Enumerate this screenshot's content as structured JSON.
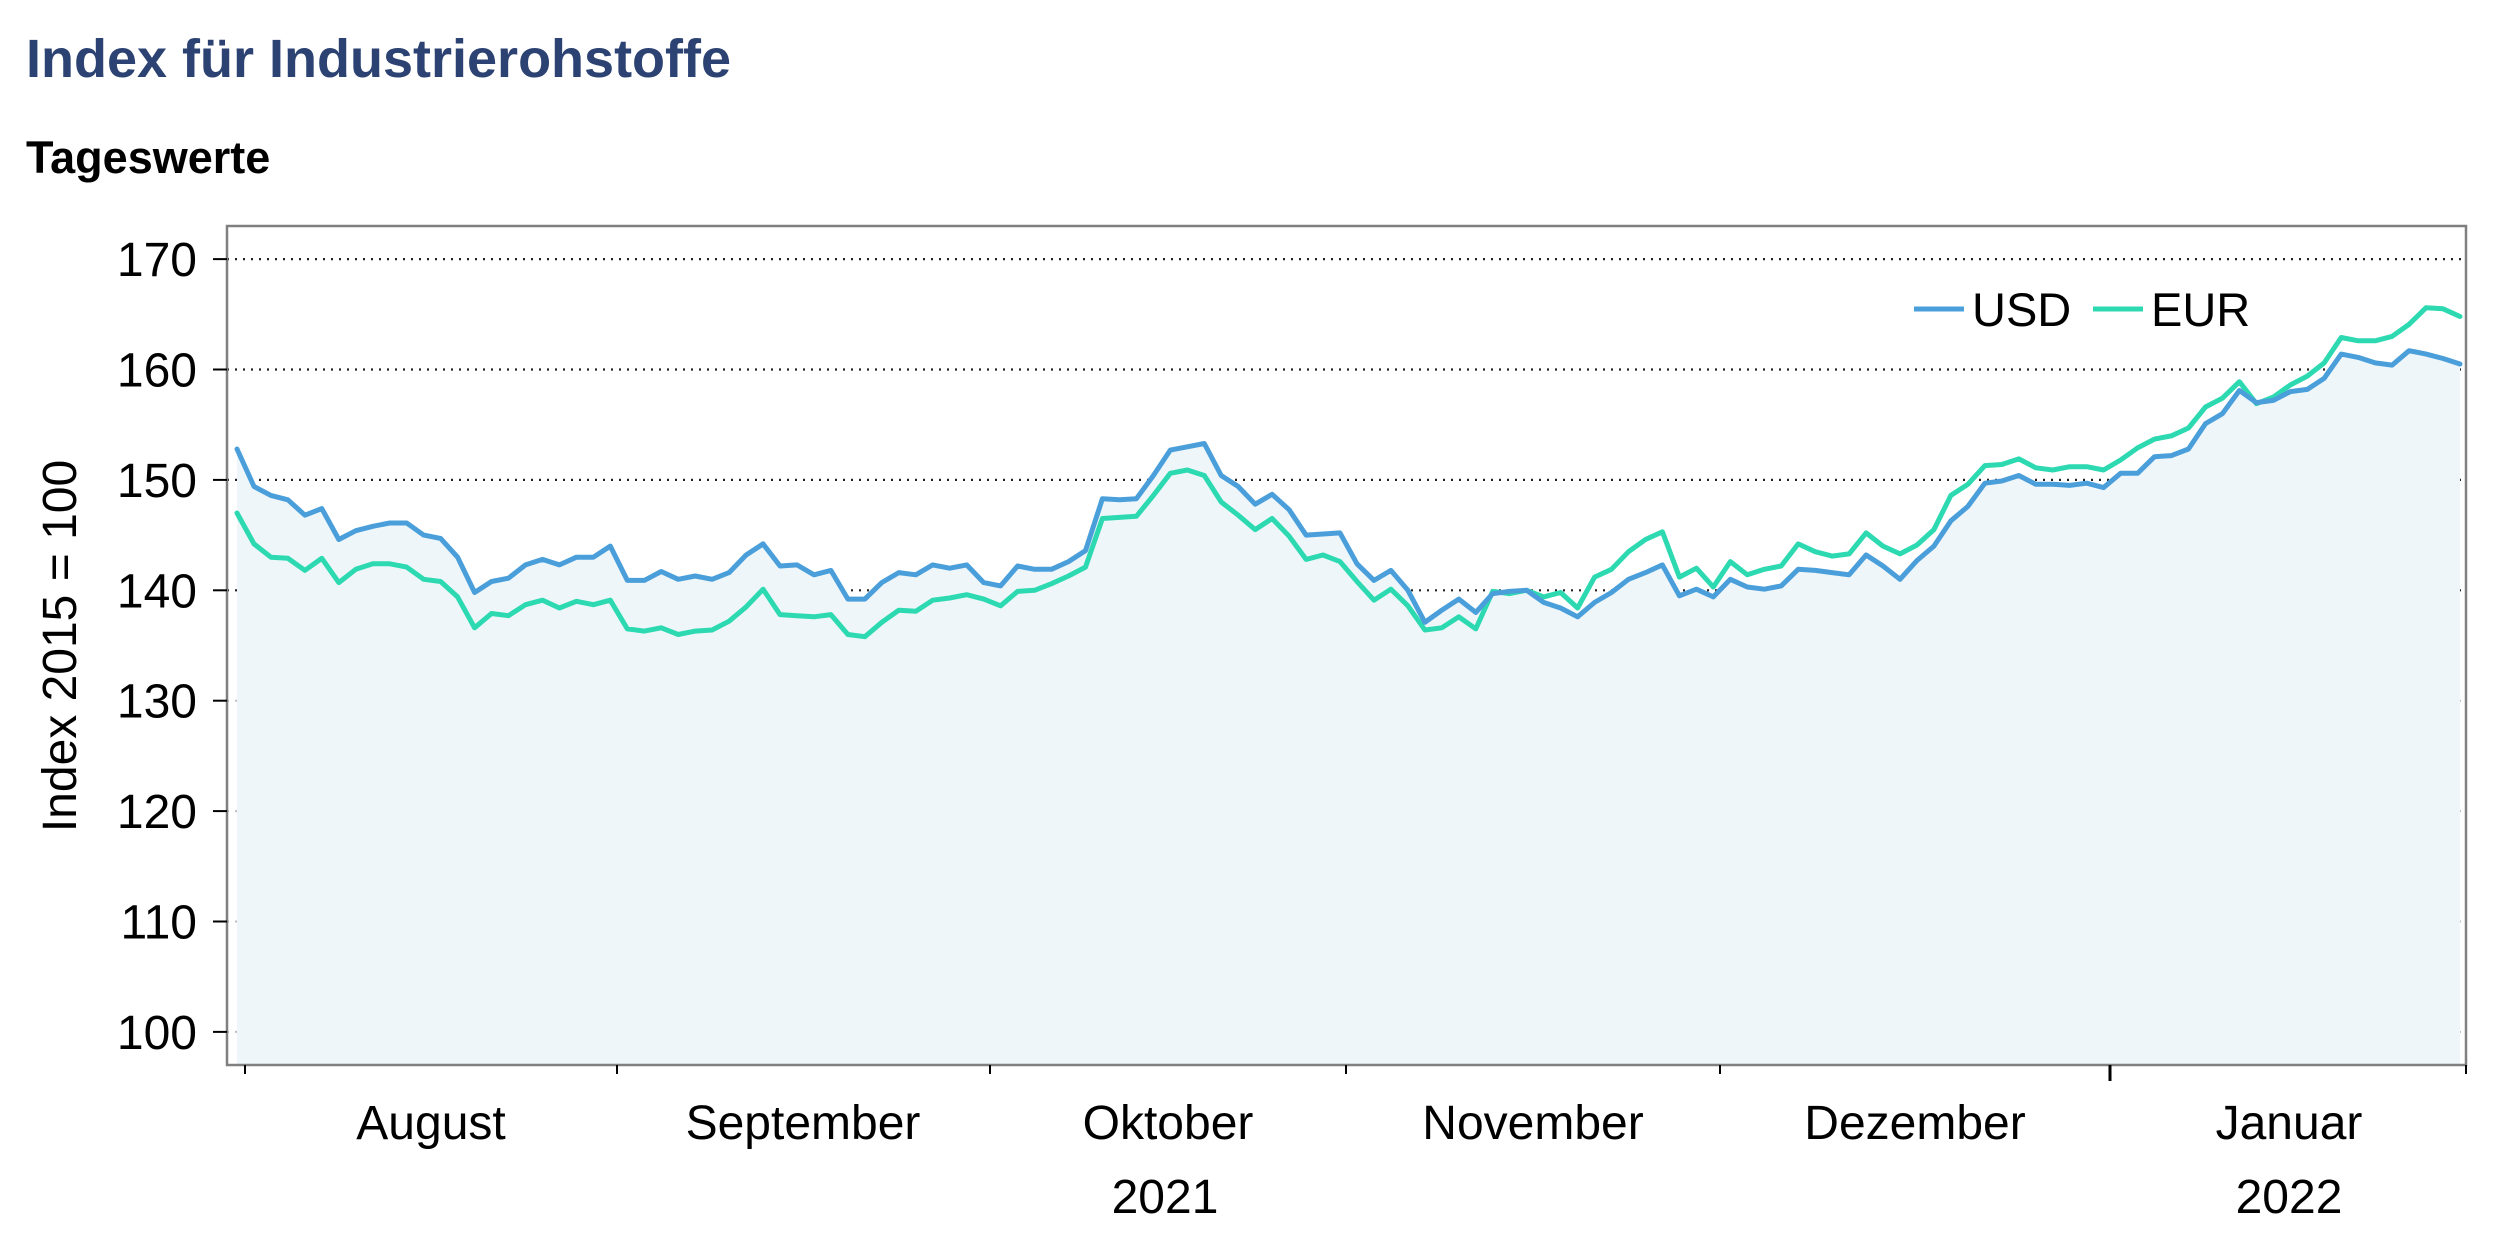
{
  "title": "Index für Industrierohstoffe",
  "subtitle": "Tageswerte",
  "colors": {
    "usd": "#4a9fdb",
    "eur": "#2dd9b0",
    "fill": "#eef6fa",
    "title": "#2b4272"
  },
  "chart_data": {
    "type": "line",
    "title": "Index für Industrierohstoffe",
    "subtitle": "Tageswerte",
    "ylabel": "Index 2015 = 100",
    "ylim": [
      97,
      173
    ],
    "yticks": [
      100,
      110,
      120,
      130,
      140,
      150,
      160,
      170
    ],
    "month_labels": [
      "August",
      "September",
      "Oktober",
      "November",
      "Dezember",
      "Januar"
    ],
    "year_labels": [
      "2021",
      "2022"
    ],
    "grid": true,
    "legend": "top-right",
    "series": [
      {
        "name": "USD",
        "color": "#4a9fdb",
        "values": [
          152.8,
          149.4,
          148.6,
          148.2,
          146.8,
          147.4,
          144.6,
          145.4,
          145.8,
          146.1,
          146.1,
          145.0,
          144.7,
          143.0,
          139.8,
          140.8,
          141.1,
          142.3,
          142.8,
          142.3,
          143.0,
          143.0,
          144.0,
          140.9,
          140.9,
          141.7,
          141.0,
          141.3,
          141.0,
          141.6,
          143.2,
          144.2,
          142.2,
          142.3,
          141.4,
          141.8,
          139.2,
          139.2,
          140.7,
          141.6,
          141.4,
          142.3,
          142.0,
          142.3,
          140.7,
          140.4,
          142.2,
          141.9,
          141.9,
          142.6,
          143.6,
          148.3,
          148.2,
          148.3,
          150.4,
          152.7,
          153.0,
          153.3,
          150.4,
          149.4,
          147.8,
          148.7,
          147.3,
          145.0,
          145.1,
          145.2,
          142.4,
          140.9,
          141.8,
          140.0,
          137.1,
          138.2,
          139.2,
          138.0,
          139.7,
          139.9,
          140.0,
          138.9,
          138.4,
          137.6,
          138.9,
          139.8,
          141.0,
          141.6,
          142.3,
          139.5,
          140.1,
          139.4,
          141.0,
          140.3,
          140.1,
          140.4,
          141.9,
          141.8,
          141.6,
          141.4,
          143.2,
          142.2,
          141.0,
          142.7,
          144.0,
          146.3,
          147.6,
          149.7,
          149.9,
          150.4,
          149.6,
          149.6,
          149.5,
          149.7,
          149.3,
          150.6,
          150.6,
          152.1,
          152.2,
          152.8,
          155.1,
          156.0,
          158.1,
          157.0,
          157.2,
          158.0,
          158.2,
          159.2,
          161.4,
          161.1,
          160.6,
          160.4,
          161.7,
          161.4,
          161.0,
          160.5
        ]
      },
      {
        "name": "EUR",
        "color": "#2dd9b0",
        "values": [
          147.0,
          144.2,
          143.0,
          142.9,
          141.8,
          142.9,
          140.7,
          141.9,
          142.4,
          142.4,
          142.1,
          141.0,
          140.8,
          139.4,
          136.6,
          137.9,
          137.7,
          138.7,
          139.1,
          138.4,
          139.0,
          138.7,
          139.1,
          136.5,
          136.3,
          136.6,
          136.0,
          136.3,
          136.4,
          137.2,
          138.5,
          140.1,
          137.8,
          137.7,
          137.6,
          137.8,
          136.0,
          135.8,
          137.1,
          138.2,
          138.1,
          139.1,
          139.3,
          139.6,
          139.2,
          138.6,
          139.9,
          140.0,
          140.6,
          141.3,
          142.1,
          146.5,
          146.6,
          146.7,
          148.6,
          150.6,
          150.9,
          150.4,
          148.0,
          146.8,
          145.5,
          146.5,
          144.9,
          142.8,
          143.2,
          142.6,
          140.8,
          139.1,
          140.1,
          138.6,
          136.4,
          136.6,
          137.6,
          136.5,
          139.9,
          139.7,
          140.0,
          139.4,
          139.8,
          138.4,
          141.2,
          141.9,
          143.5,
          144.6,
          145.3,
          141.2,
          142.0,
          140.3,
          142.6,
          141.4,
          141.9,
          142.2,
          144.2,
          143.5,
          143.1,
          143.3,
          145.2,
          144.0,
          143.3,
          144.1,
          145.5,
          148.6,
          149.6,
          151.3,
          151.4,
          151.9,
          151.1,
          150.9,
          151.2,
          151.2,
          150.9,
          151.8,
          152.9,
          153.7,
          154.0,
          154.7,
          156.6,
          157.4,
          158.9,
          156.9,
          157.5,
          158.6,
          159.4,
          160.6,
          162.9,
          162.6,
          162.6,
          163.0,
          164.1,
          165.6,
          165.5,
          164.8
        ]
      }
    ]
  }
}
